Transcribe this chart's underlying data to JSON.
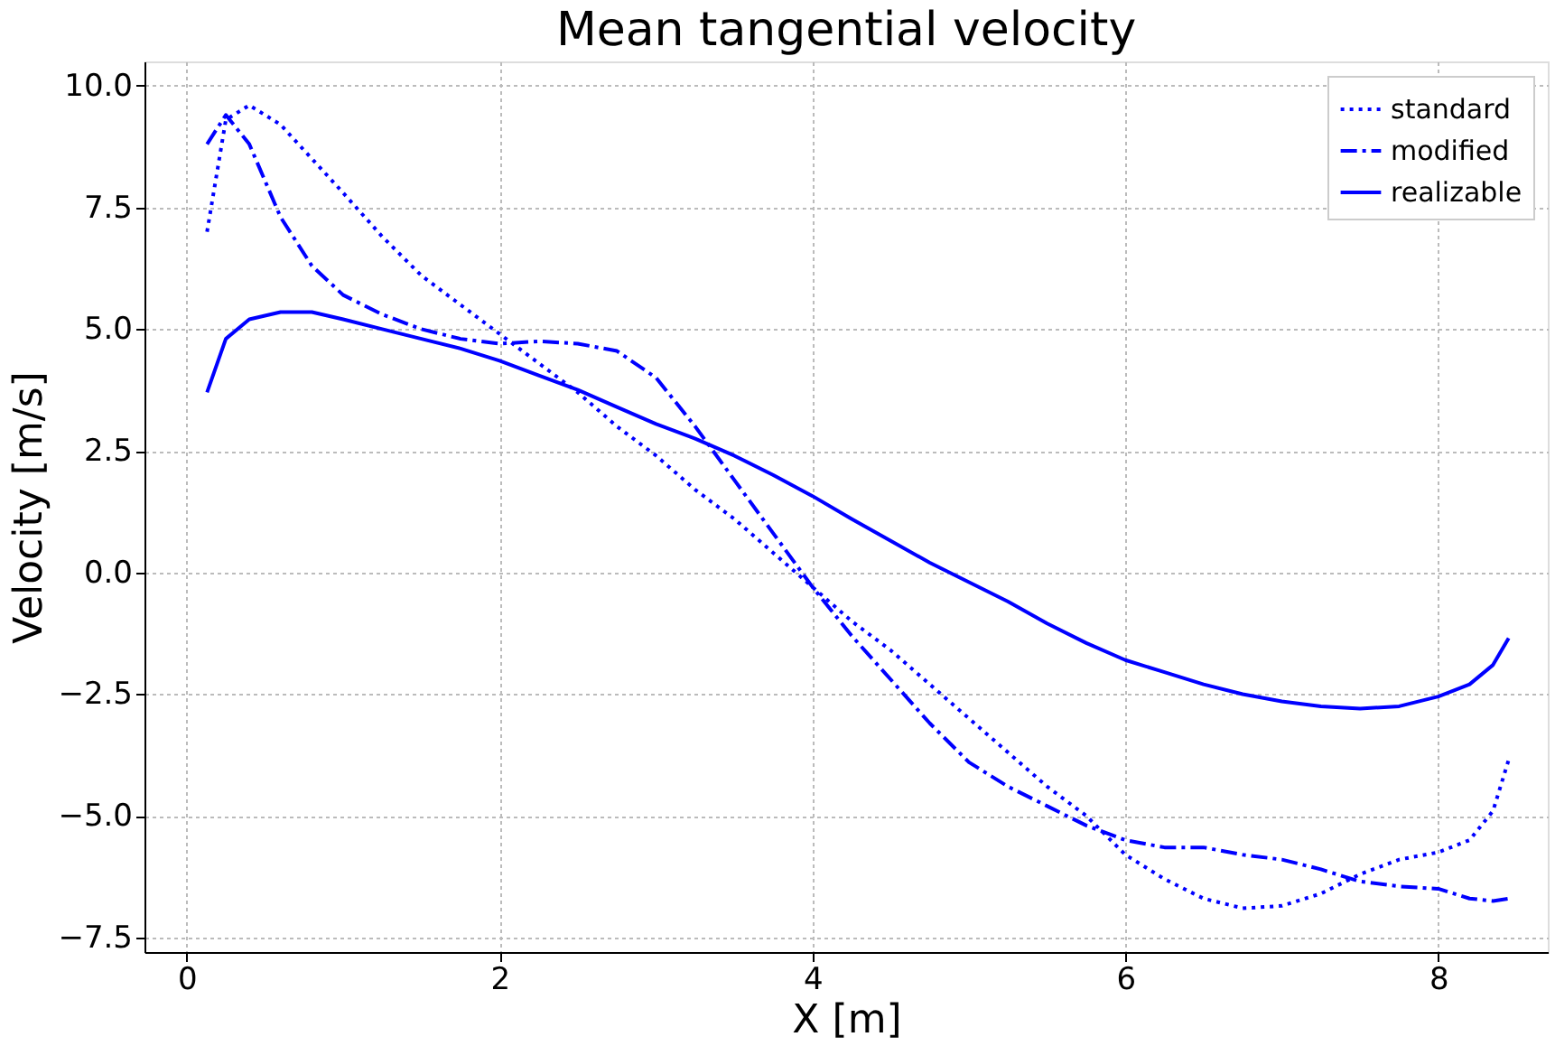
{
  "chart_data": {
    "type": "line",
    "title": "Mean tangential velocity",
    "xlabel": "X [m]",
    "ylabel": "Velocity [m/s]",
    "xlim": [
      -0.27,
      8.7
    ],
    "xticks": [
      0,
      2,
      4,
      6,
      8
    ],
    "ylim": [
      -7.8,
      10.5
    ],
    "yticks": [
      {
        "value": -7.5,
        "label": "−7.5"
      },
      {
        "value": -5,
        "label": "−5.0"
      },
      {
        "value": -2.5,
        "label": "−2.5"
      },
      {
        "value": 0,
        "label": "0.0"
      },
      {
        "value": 2.5,
        "label": "2.5"
      },
      {
        "value": 5,
        "label": "5.0"
      },
      {
        "value": 7.5,
        "label": "7.5"
      },
      {
        "value": 10,
        "label": "10.0"
      }
    ],
    "grid": true,
    "legend": "top right",
    "marker": "none",
    "x": [
      0.13,
      0.25,
      0.4,
      0.6,
      0.8,
      1,
      1.25,
      1.5,
      1.75,
      2,
      2.25,
      2.5,
      2.75,
      3,
      3.25,
      3.5,
      3.75,
      4,
      4.25,
      4.5,
      4.75,
      5,
      5.25,
      5.5,
      5.75,
      6,
      6.25,
      6.5,
      6.75,
      7,
      7.25,
      7.5,
      7.75,
      8,
      8.2,
      8.35,
      8.45
    ],
    "series": [
      {
        "name": "standard",
        "color": "#0000ff",
        "line_style": "dotted",
        "values": [
          7.0,
          9.3,
          9.6,
          9.2,
          8.5,
          7.8,
          6.9,
          6.1,
          5.5,
          4.9,
          4.3,
          3.7,
          3.0,
          2.4,
          1.7,
          1.1,
          0.4,
          -0.3,
          -1.0,
          -1.6,
          -2.3,
          -3.0,
          -3.7,
          -4.4,
          -5.0,
          -5.8,
          -6.3,
          -6.7,
          -6.9,
          -6.85,
          -6.6,
          -6.2,
          -5.9,
          -5.75,
          -5.5,
          -4.9,
          -3.85
        ]
      },
      {
        "name": "modified",
        "color": "#0000ff",
        "line_style": "dashed",
        "values": [
          8.8,
          9.4,
          8.8,
          7.3,
          6.3,
          5.7,
          5.3,
          5.0,
          4.8,
          4.7,
          4.75,
          4.7,
          4.55,
          4.0,
          3.0,
          1.9,
          0.8,
          -0.3,
          -1.3,
          -2.2,
          -3.1,
          -3.9,
          -4.4,
          -4.8,
          -5.2,
          -5.5,
          -5.65,
          -5.65,
          -5.8,
          -5.9,
          -6.1,
          -6.35,
          -6.45,
          -6.5,
          -6.7,
          -6.75,
          -6.7
        ]
      },
      {
        "name": "realizable",
        "color": "#0000ff",
        "line_style": "solid",
        "values": [
          3.7,
          4.8,
          5.2,
          5.35,
          5.35,
          5.2,
          5.0,
          4.8,
          4.6,
          4.35,
          4.05,
          3.75,
          3.4,
          3.05,
          2.75,
          2.4,
          2.0,
          1.57,
          1.1,
          0.65,
          0.2,
          -0.2,
          -0.6,
          -1.05,
          -1.45,
          -1.8,
          -2.05,
          -2.3,
          -2.5,
          -2.65,
          -2.75,
          -2.8,
          -2.75,
          -2.55,
          -2.3,
          -1.9,
          -1.35
        ]
      }
    ]
  }
}
